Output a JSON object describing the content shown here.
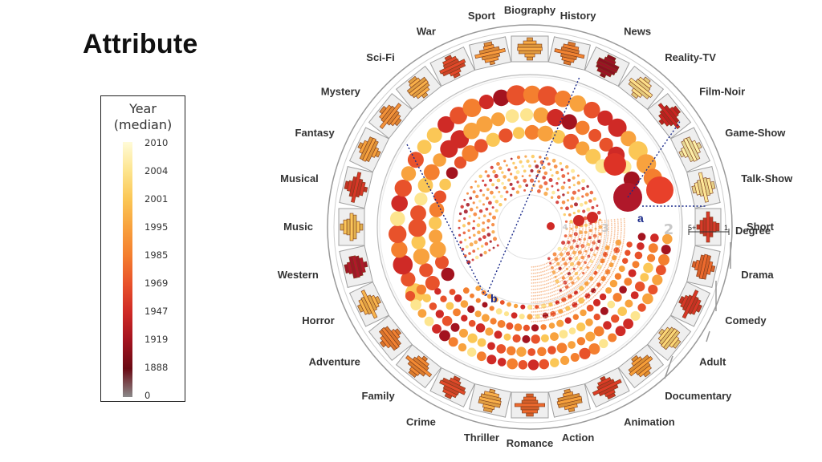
{
  "page": {
    "title": "Attribute"
  },
  "legend": {
    "title_line1": "Year",
    "title_line2": "(median)",
    "labels": [
      "2010",
      "2004",
      "2001",
      "1995",
      "1985",
      "1969",
      "1947",
      "1919",
      "1888",
      "0"
    ],
    "colors": [
      "#fffbd8",
      "#fde58f",
      "#fbc756",
      "#f8a23e",
      "#f47f2f",
      "#e8522b",
      "#cf2a26",
      "#a3131f",
      "#6a0a14",
      "#8a8a8a"
    ]
  },
  "degree_scale": {
    "label": "Degree",
    "min_label": "5+",
    "max_label": "1"
  },
  "ring_numbers": [
    "2",
    "3",
    "4"
  ],
  "markers": [
    "a",
    "b"
  ],
  "genres": [
    {
      "name": "Short",
      "color": "#d93a2a"
    },
    {
      "name": "Drama",
      "color": "#ef6b2e"
    },
    {
      "name": "Comedy",
      "color": "#d83727"
    },
    {
      "name": "Adult",
      "color": "#fcd877"
    },
    {
      "name": "Documentary",
      "color": "#f79f38"
    },
    {
      "name": "Animation",
      "color": "#dd3d27"
    },
    {
      "name": "Action",
      "color": "#f6a13c"
    },
    {
      "name": "Romance",
      "color": "#ee6a2e"
    },
    {
      "name": "Thriller",
      "color": "#f9b04a"
    },
    {
      "name": "Crime",
      "color": "#e24a2a"
    },
    {
      "name": "Family",
      "color": "#f38a33"
    },
    {
      "name": "Adventure",
      "color": "#f28232"
    },
    {
      "name": "Horror",
      "color": "#f9b54d"
    },
    {
      "name": "Western",
      "color": "#b0182a"
    },
    {
      "name": "Music",
      "color": "#fbc659"
    },
    {
      "name": "Musical",
      "color": "#d83827"
    },
    {
      "name": "Fantasy",
      "color": "#f7a23e"
    },
    {
      "name": "Mystery",
      "color": "#f4933a"
    },
    {
      "name": "Sci-Fi",
      "color": "#f9b04a"
    },
    {
      "name": "War",
      "color": "#e4492a"
    },
    {
      "name": "Sport",
      "color": "#f89b3d"
    },
    {
      "name": "Biography",
      "color": "#f9ac46"
    },
    {
      "name": "History",
      "color": "#f28432"
    },
    {
      "name": "News",
      "color": "#9c1225"
    },
    {
      "name": "Reality-TV",
      "color": "#fde08a"
    },
    {
      "name": "Film-Noir",
      "color": "#cc2323"
    },
    {
      "name": "Game-Show",
      "color": "#fef0a8"
    },
    {
      "name": "Talk-Show",
      "color": "#fee797"
    }
  ]
}
